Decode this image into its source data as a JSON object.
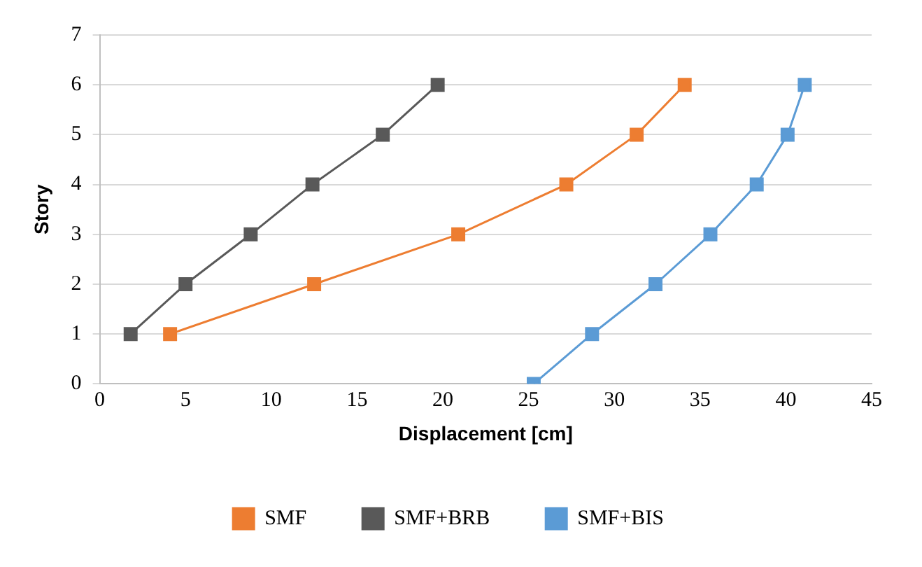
{
  "chart_data": {
    "type": "line",
    "xlabel": "Displacement [cm]",
    "ylabel": "Story",
    "xlim": [
      0,
      45
    ],
    "xticks": [
      0,
      5,
      10,
      15,
      20,
      25,
      30,
      35,
      40,
      45
    ],
    "ylim": [
      0,
      7
    ],
    "yticks": [
      0,
      1,
      2,
      3,
      4,
      5,
      6,
      7
    ],
    "grid": "y",
    "legend": "bottom",
    "marker": "square",
    "line_style": "solid",
    "series": [
      {
        "name": "SMF",
        "color": "#ed7d31",
        "x": [
          4.1,
          12.5,
          20.9,
          27.2,
          31.3,
          34.1
        ],
        "values": [
          1,
          2,
          3,
          4,
          5,
          6
        ]
      },
      {
        "name": "SMF+BRB",
        "color": "#595959",
        "x": [
          1.8,
          5.0,
          8.8,
          12.4,
          16.5,
          19.7
        ],
        "values": [
          1,
          2,
          3,
          4,
          5,
          6
        ]
      },
      {
        "name": "SMF+BIS",
        "color": "#5b9bd5",
        "x": [
          25.3,
          28.7,
          32.4,
          35.6,
          38.3,
          40.1,
          41.1
        ],
        "values": [
          0,
          1,
          2,
          3,
          4,
          5,
          6
        ]
      }
    ]
  }
}
